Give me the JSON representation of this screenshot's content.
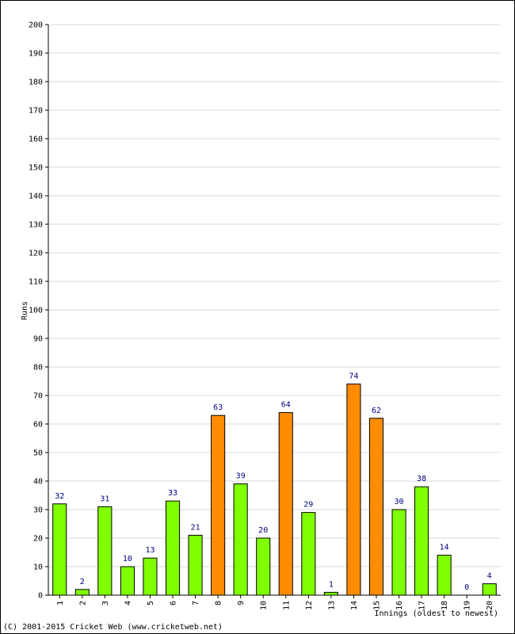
{
  "chart_data": {
    "type": "bar",
    "title": "",
    "ylabel": "Runs",
    "xlabel": "Innings (oldest to newest)",
    "ylim": [
      0,
      200
    ],
    "ytick_step": 10,
    "grid": true,
    "categories": [
      "1",
      "2",
      "3",
      "4",
      "5",
      "6",
      "7",
      "8",
      "9",
      "10",
      "11",
      "12",
      "13",
      "14",
      "15",
      "16",
      "17",
      "18",
      "19",
      "20"
    ],
    "values": [
      32,
      2,
      31,
      10,
      13,
      33,
      21,
      63,
      39,
      20,
      64,
      29,
      1,
      74,
      62,
      30,
      38,
      14,
      0,
      4
    ],
    "fifty_plus": [
      false,
      false,
      false,
      false,
      false,
      false,
      false,
      true,
      false,
      false,
      true,
      false,
      false,
      true,
      true,
      false,
      false,
      false,
      false,
      false
    ],
    "colors": {
      "below_fifty": "#80ff00",
      "fifty_plus": "#ff8c00",
      "bar_outline": "#000000",
      "value_label": "#000080",
      "grid": "#d8d8d8",
      "axis": "#000000"
    }
  },
  "footer": {
    "copyright": "(C) 2001-2015 Cricket Web (www.cricketweb.net)"
  }
}
